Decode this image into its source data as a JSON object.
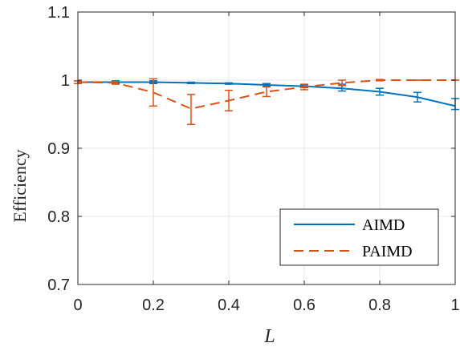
{
  "chart_data": {
    "type": "line",
    "xlabel": "L",
    "ylabel": "Efficiency",
    "xlim": [
      0,
      1
    ],
    "ylim": [
      0.7,
      1.1
    ],
    "xticks": [
      0,
      0.2,
      0.4,
      0.6,
      0.8,
      1
    ],
    "xtick_labels": [
      "0",
      "0.2",
      "0.4",
      "0.6",
      "0.8",
      "1"
    ],
    "yticks": [
      0.7,
      0.8,
      0.9,
      1,
      1.1
    ],
    "ytick_labels": [
      "0.7",
      "0.8",
      "0.9",
      "1",
      "1.1"
    ],
    "grid": true,
    "legend_position": "bottom-right",
    "series": [
      {
        "name": "AIMD",
        "color": "#0072BD",
        "line_style": "solid",
        "curve": {
          "x": [
            0,
            0.1,
            0.2,
            0.3,
            0.4,
            0.5,
            0.6,
            0.7,
            0.8,
            0.9,
            1.0
          ],
          "y": [
            0.997,
            0.997,
            0.997,
            0.996,
            0.995,
            0.993,
            0.991,
            0.988,
            0.983,
            0.975,
            0.962
          ]
        },
        "error_bars": {
          "x": [
            0,
            0.1,
            0.2,
            0.3,
            0.4,
            0.5,
            0.6,
            0.7,
            0.8,
            0.9,
            1.0
          ],
          "y": [
            0.997,
            0.997,
            0.997,
            0.996,
            0.995,
            0.993,
            0.991,
            0.989,
            0.983,
            0.975,
            0.965
          ],
          "err": [
            0.002,
            0.002,
            0.002,
            0.001,
            0.001,
            0.002,
            0.002,
            0.005,
            0.005,
            0.007,
            0.008
          ]
        }
      },
      {
        "name": "PAIMD",
        "color": "#D95319",
        "line_style": "dashed",
        "curve": {
          "x": [
            0,
            0.1,
            0.2,
            0.3,
            0.4,
            0.5,
            0.6,
            0.7,
            0.8,
            0.9,
            1.0
          ],
          "y": [
            0.997,
            0.996,
            0.982,
            0.958,
            0.97,
            0.983,
            0.99,
            0.996,
            1.0,
            1.0,
            1.0
          ]
        },
        "error_bars": {
          "x": [
            0,
            0.1,
            0.2,
            0.3,
            0.4,
            0.5,
            0.6,
            0.7,
            0.8,
            0.9,
            1.0
          ],
          "y": [
            0.997,
            0.996,
            0.982,
            0.957,
            0.97,
            0.983,
            0.99,
            0.996,
            1.0,
            1.0,
            1.0
          ],
          "err": [
            0.002,
            0.002,
            0.02,
            0.022,
            0.015,
            0.007,
            0.004,
            0.004,
            0.001,
            0.0,
            0.0
          ]
        }
      }
    ]
  }
}
